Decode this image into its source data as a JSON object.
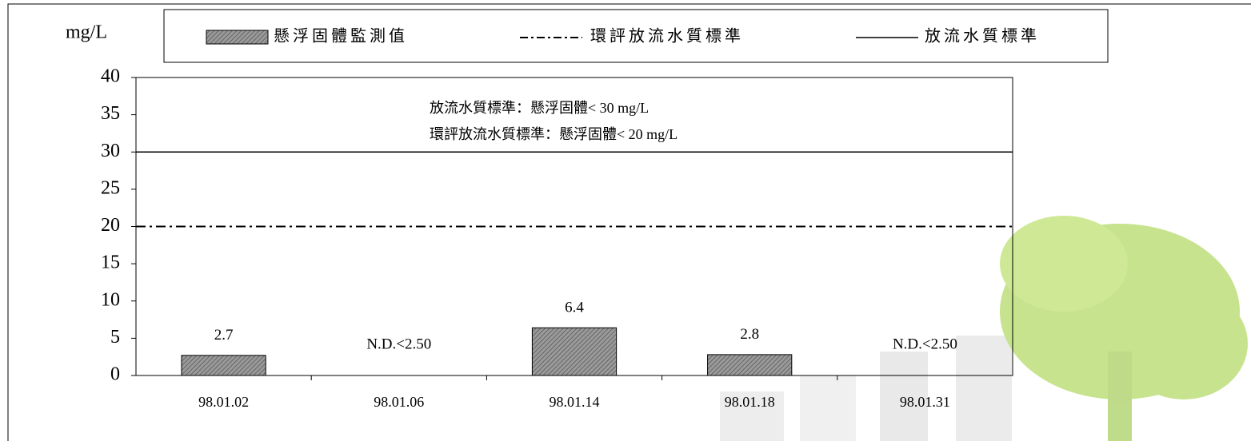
{
  "chart_data": {
    "type": "bar",
    "y_label": "mg/L",
    "categories": [
      "98.01.02",
      "98.01.06",
      "98.01.14",
      "98.01.18",
      "98.01.31"
    ],
    "series": [
      {
        "name": "懸浮固體監測值",
        "color": "#808080",
        "values": [
          2.7,
          null,
          6.4,
          2.8,
          null
        ],
        "value_labels": [
          "2.7",
          "N.D.<2.50",
          "6.4",
          "2.8",
          "N.D.<2.50"
        ]
      }
    ],
    "reference_lines": [
      {
        "name": "環評放流水質標準",
        "value": 20,
        "style": "dashdot",
        "color": "#000000"
      },
      {
        "name": "放流水質標準",
        "value": 30,
        "style": "solid",
        "color": "#000000"
      }
    ],
    "annotations": [
      "放流水質標準：懸浮固體< 30 mg/L",
      "環評放流水質標準：懸浮固體< 20 mg/L"
    ],
    "ylim": [
      0,
      40
    ],
    "yticks": [
      0,
      5,
      10,
      15,
      20,
      25,
      30,
      35,
      40
    ]
  }
}
